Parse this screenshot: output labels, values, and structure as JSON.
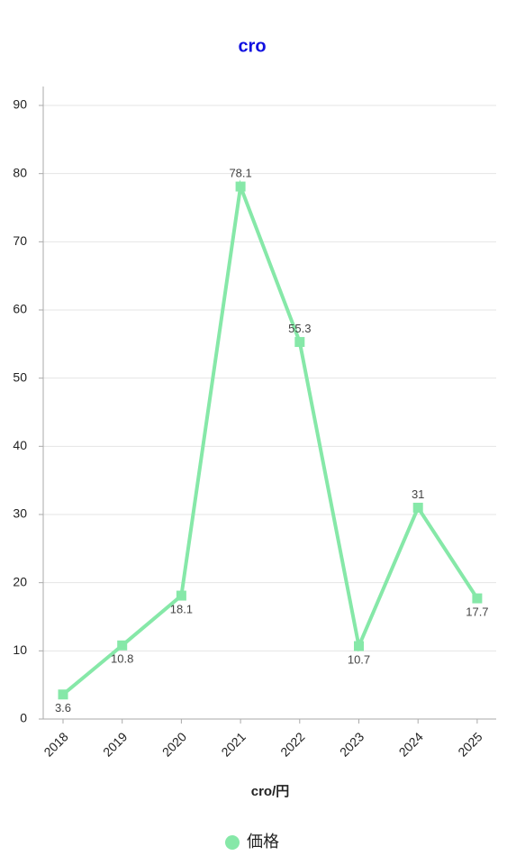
{
  "chart_data": {
    "type": "line",
    "title": "cro",
    "x_label": "cro/円",
    "categories": [
      "2018",
      "2019",
      "2020",
      "2021",
      "2022",
      "2023",
      "2024",
      "2025"
    ],
    "series": [
      {
        "name": "価格",
        "color": "#86e8a8",
        "values": [
          3.6,
          10.8,
          18.1,
          78.1,
          55.3,
          10.7,
          31,
          17.7
        ]
      }
    ],
    "ylim": [
      0,
      90
    ],
    "yticks": [
      0,
      10,
      20,
      30,
      40,
      50,
      60,
      70,
      80,
      90
    ],
    "grid": true,
    "legend": "bottom"
  }
}
